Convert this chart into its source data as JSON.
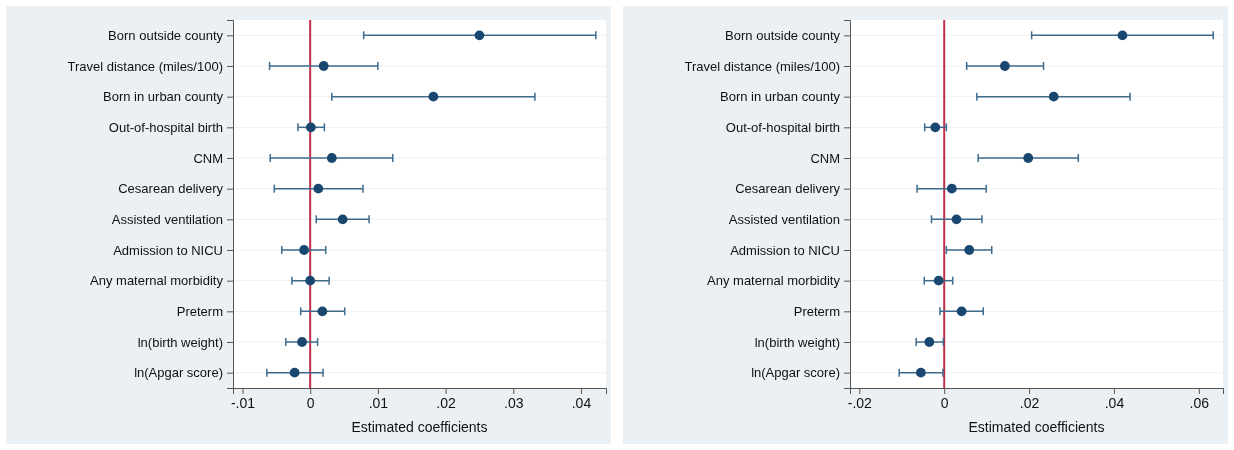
{
  "chart_data": [
    {
      "type": "scatter",
      "orientation": "horizontal",
      "xlabel": "Estimated coefficients",
      "categories": [
        "Born outside county",
        "Travel distance (miles/100)",
        "Born in urban county",
        "Out-of-hospital birth",
        "CNM",
        "Cesarean delivery",
        "Assisted ventilation",
        "Admission to NICU",
        "Any maternal morbidity",
        "Preterm",
        "ln(birth weight)",
        "ln(Apgar score)"
      ],
      "values": [
        0.025,
        0.002,
        0.0182,
        0.0001,
        0.0032,
        0.0012,
        0.0048,
        -0.0009,
        0.0,
        0.0018,
        -0.0012,
        -0.0023
      ],
      "errors": [
        [
          0.0079,
          0.0422
        ],
        [
          -0.006,
          0.01
        ],
        [
          0.0032,
          0.0332
        ],
        [
          -0.0018,
          0.0021
        ],
        [
          -0.0059,
          0.0122
        ],
        [
          -0.0053,
          0.0078
        ],
        [
          0.0009,
          0.0087
        ],
        [
          -0.0042,
          0.0023
        ],
        [
          -0.0027,
          0.0028
        ],
        [
          -0.0014,
          0.0051
        ],
        [
          -0.0036,
          0.0011
        ],
        [
          -0.0064,
          0.0019
        ]
      ],
      "color": "#1a476f",
      "marker": "circle",
      "grid": "y",
      "xlim": [
        -0.0114,
        0.0437
      ],
      "xticks": [
        {
          "value": -0.01,
          "label": "-.01"
        },
        0,
        {
          "value": 0.01,
          "label": ".01"
        },
        {
          "value": 0.02,
          "label": ".02"
        },
        {
          "value": 0.03,
          "label": ".03"
        },
        {
          "value": 0.04,
          "label": ".04"
        }
      ],
      "ref_lines": [
        {
          "axis": "x",
          "value": 0,
          "color": "#c0304a"
        }
      ]
    },
    {
      "type": "scatter",
      "orientation": "horizontal",
      "xlabel": "Estimated coefficients",
      "categories": [
        "Born outside county",
        "Travel distance (miles/100)",
        "Born in urban county",
        "Out-of-hospital birth",
        "CNM",
        "Cesarean delivery",
        "Assisted ventilation",
        "Admission to NICU",
        "Any maternal morbidity",
        "Preterm",
        "ln(birth weight)",
        "ln(Apgar score)"
      ],
      "values": [
        0.042,
        0.0143,
        0.0258,
        -0.0021,
        0.0198,
        0.0018,
        0.0029,
        0.0059,
        -0.0013,
        0.0041,
        -0.0035,
        -0.0055
      ],
      "errors": [
        [
          0.0206,
          0.0634
        ],
        [
          0.0053,
          0.0234
        ],
        [
          0.0077,
          0.0438
        ],
        [
          -0.0046,
          0.0005
        ],
        [
          0.008,
          0.0316
        ],
        [
          -0.0064,
          0.0099
        ],
        [
          -0.003,
          0.0089
        ],
        [
          0.0005,
          0.0112
        ],
        [
          -0.0047,
          0.002
        ],
        [
          -0.001,
          0.0092
        ],
        [
          -0.0066,
          -0.0002
        ],
        [
          -0.0106,
          -0.0003
        ]
      ],
      "color": "#1a476f",
      "marker": "circle",
      "grid": "y",
      "xlim": [
        -0.0222,
        0.0657
      ],
      "xticks": [
        {
          "value": -0.02,
          "label": "-.02"
        },
        0,
        {
          "value": 0.02,
          "label": ".02"
        },
        {
          "value": 0.04,
          "label": ".04"
        },
        {
          "value": 0.06,
          "label": ".06"
        }
      ],
      "ref_lines": [
        {
          "axis": "x",
          "value": 0,
          "color": "#c0304a"
        }
      ]
    }
  ]
}
